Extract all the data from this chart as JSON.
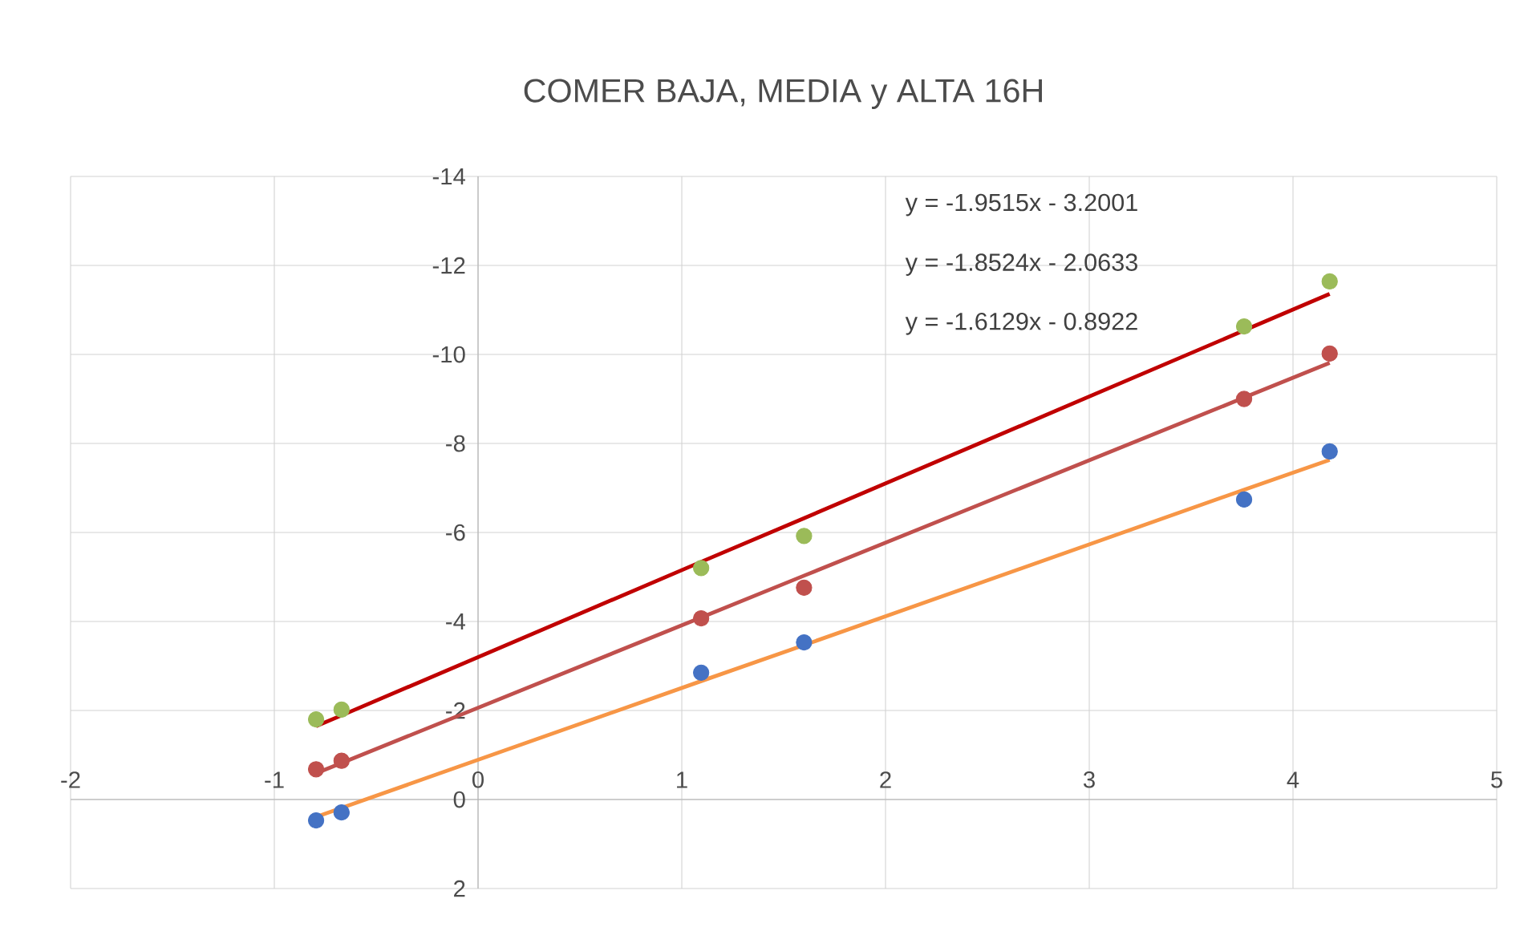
{
  "chart_data": {
    "type": "scatter",
    "title": "COMER BAJA, MEDIA y ALTA 16H",
    "x": [
      -0.795,
      -0.67,
      1.095,
      1.6,
      3.76,
      4.18
    ],
    "series": [
      {
        "color": "#4472c4",
        "values": [
          0.47,
          0.29,
          -2.85,
          -3.53,
          -6.74,
          -7.82
        ]
      },
      {
        "color": "#c0504d",
        "values": [
          -0.68,
          -0.87,
          -4.07,
          -4.76,
          -9.0,
          -10.02
        ]
      },
      {
        "color": "#9bbb59",
        "values": [
          -1.8,
          -2.02,
          -5.2,
          -5.92,
          -10.63,
          -11.64
        ]
      },
      {
        "type": "line",
        "marker": "none",
        "color": "#f79646",
        "values": [
          0.39,
          0.19,
          -2.66,
          -3.47,
          -6.96,
          -7.63
        ]
      },
      {
        "type": "line",
        "marker": "none",
        "color": "#c0504d",
        "values": [
          -0.59,
          -0.82,
          -4.09,
          -5.03,
          -9.03,
          -9.81
        ]
      },
      {
        "type": "line",
        "marker": "none",
        "color": "#c00000",
        "values": [
          -1.65,
          -1.89,
          -5.34,
          -6.32,
          -10.54,
          -11.36
        ]
      }
    ],
    "annotations": [
      "y = -1.9515x - 3.2001",
      "y = -1.8524x - 2.0633",
      "y = -1.6129x - 0.8922"
    ],
    "xlim": [
      -2,
      5
    ],
    "xticks": [
      -2,
      -1,
      0,
      1,
      2,
      3,
      4,
      5
    ],
    "ylim": [
      2,
      -14
    ],
    "yticks": [
      2,
      0,
      -2,
      -4,
      -6,
      -8,
      -10,
      -12,
      -14
    ],
    "grid": true,
    "marker": "circle",
    "line_style": "solid"
  }
}
